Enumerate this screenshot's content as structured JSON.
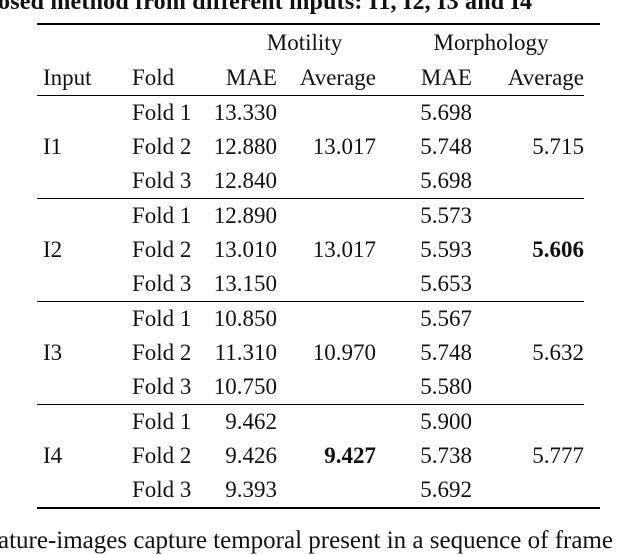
{
  "captions": {
    "top": "osed method from different inputs: I1, I2, I3 and I4",
    "bottom": "ature-images capture temporal present in a sequence of frame"
  },
  "table": {
    "group_headers": [
      "Motility",
      "Morphology"
    ],
    "col_headers": [
      "Input",
      "Fold",
      "MAE",
      "Average",
      "MAE",
      "Average"
    ],
    "blocks": [
      {
        "input": "I1",
        "folds": [
          "Fold 1",
          "Fold 2",
          "Fold 3"
        ],
        "mot_mae": [
          "13.330",
          "12.880",
          "12.840"
        ],
        "mot_avg": "13.017",
        "mot_avg_bold": false,
        "mor_mae": [
          "5.698",
          "5.748",
          "5.698"
        ],
        "mor_avg": "5.715",
        "mor_avg_bold": false
      },
      {
        "input": "I2",
        "folds": [
          "Fold 1",
          "Fold 2",
          "Fold 3"
        ],
        "mot_mae": [
          "12.890",
          "13.010",
          "13.150"
        ],
        "mot_avg": "13.017",
        "mot_avg_bold": false,
        "mor_mae": [
          "5.573",
          "5.593",
          "5.653"
        ],
        "mor_avg": "5.606",
        "mor_avg_bold": true
      },
      {
        "input": "I3",
        "folds": [
          "Fold 1",
          "Fold 2",
          "Fold 3"
        ],
        "mot_mae": [
          "10.850",
          "11.310",
          "10.750"
        ],
        "mot_avg": "10.970",
        "mot_avg_bold": false,
        "mor_mae": [
          "5.567",
          "5.748",
          "5.580"
        ],
        "mor_avg": "5.632",
        "mor_avg_bold": false
      },
      {
        "input": "I4",
        "folds": [
          "Fold 1",
          "Fold 2",
          "Fold 3"
        ],
        "mot_mae": [
          "9.462",
          "9.426",
          "9.393"
        ],
        "mot_avg": "9.427",
        "mot_avg_bold": true,
        "mor_mae": [
          "5.900",
          "5.738",
          "5.692"
        ],
        "mor_avg": "5.777",
        "mor_avg_bold": false
      }
    ]
  },
  "colors": {
    "text": "#111111",
    "rule": "#000000",
    "background": "#ffffff"
  }
}
